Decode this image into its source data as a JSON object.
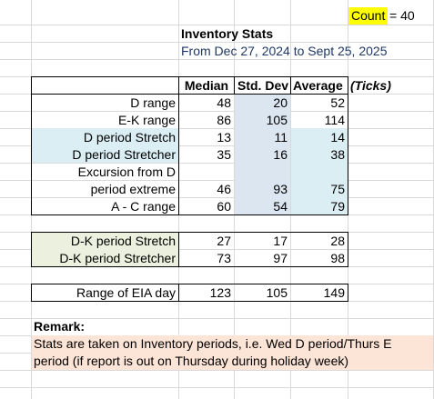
{
  "count": {
    "label": "Count",
    "eq": "=",
    "value": "40"
  },
  "title": "Inventory Stats",
  "date_range": "From Dec 27, 2024 to Sept 25,  2025",
  "headers": {
    "median": "Median",
    "std": "Std. Dev",
    "average": "Average",
    "unit": "(Ticks)"
  },
  "rows": [
    {
      "label": "D range",
      "median": "48",
      "std": "20",
      "average": "52"
    },
    {
      "label": "E-K range",
      "median": "86",
      "std": "105",
      "average": "114"
    },
    {
      "label": "D period Stretch",
      "median": "13",
      "std": "11",
      "average": "14"
    },
    {
      "label": "D period Stretcher",
      "median": "35",
      "std": "16",
      "average": "38"
    },
    {
      "label_line1": "Excursion from D",
      "label": "period extreme",
      "median": "46",
      "std": "93",
      "average": "75"
    },
    {
      "label": "A - C range",
      "median": "60",
      "std": "54",
      "average": "79"
    }
  ],
  "dk_rows": [
    {
      "label": "D-K period Stretch",
      "median": "27",
      "std": "17",
      "average": "28"
    },
    {
      "label": "D-K period Stretcher",
      "median": "73",
      "std": "97",
      "average": "98"
    }
  ],
  "eia_row": {
    "label": "Range of EIA day",
    "median": "123",
    "std": "105",
    "average": "149"
  },
  "remark": {
    "title": "Remark:",
    "line1": "Stats are taken on Inventory periods, i.e. Wed D period/Thurs E",
    "line2": "period (if report is out on Thursday during holiday week)"
  }
}
